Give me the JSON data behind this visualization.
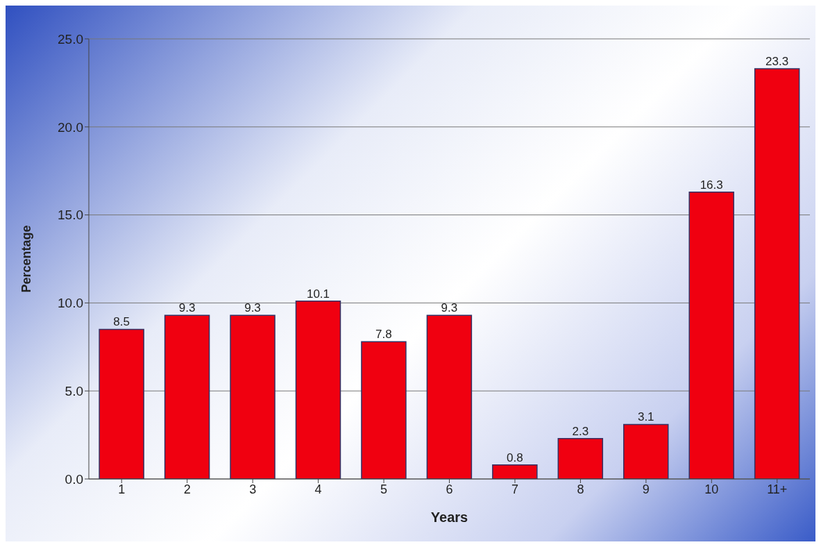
{
  "chart_data": {
    "type": "bar",
    "xlabel": "Years",
    "ylabel": "Percentage",
    "categories": [
      "1",
      "2",
      "3",
      "4",
      "5",
      "6",
      "7",
      "8",
      "9",
      "10",
      "11+"
    ],
    "values": [
      8.5,
      9.3,
      9.3,
      10.1,
      7.8,
      9.3,
      0.8,
      2.3,
      3.1,
      16.3,
      23.3
    ],
    "color": "#f00010",
    "ylim": [
      0,
      25
    ],
    "yticks": [
      {
        "value": 0,
        "label": "0.0"
      },
      {
        "value": 5,
        "label": "5.0"
      },
      {
        "value": 10,
        "label": "10.0"
      },
      {
        "value": 15,
        "label": "15.0"
      },
      {
        "value": 20,
        "label": "20.0"
      },
      {
        "value": 25,
        "label": "25.0"
      }
    ],
    "grid": "y",
    "data_labels": true
  }
}
